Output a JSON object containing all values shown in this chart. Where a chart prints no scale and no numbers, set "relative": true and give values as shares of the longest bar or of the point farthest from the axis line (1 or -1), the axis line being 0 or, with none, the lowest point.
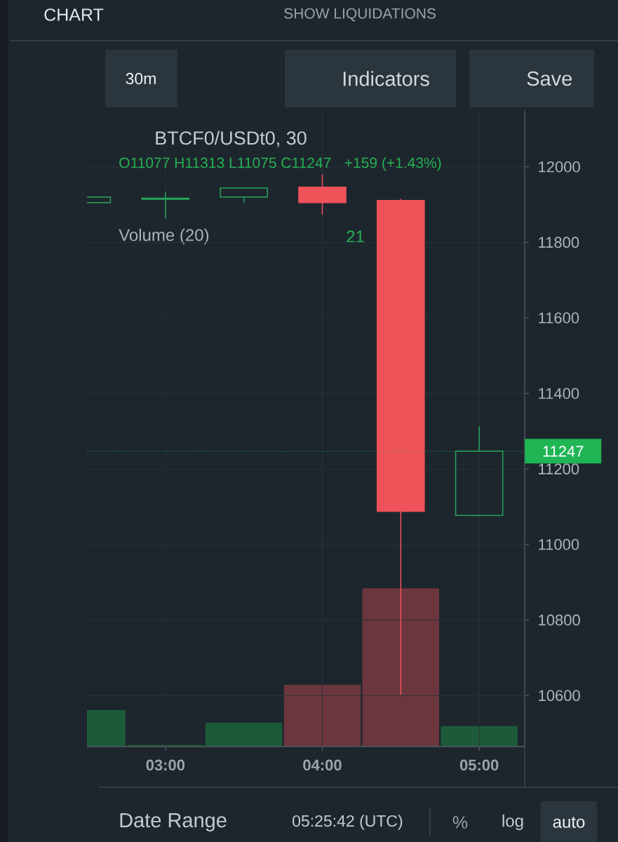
{
  "chart_data": [
    {
      "type": "candlestick",
      "title": "BTCF0/USDt0, 30",
      "subtitle": "O11077 H11313 L11075 C11247",
      "annotations": [
        "CHART",
        "SHOW LIQUIDATIONS",
        "30m",
        "Indicators",
        "Save",
        "+159 (+1.43%)",
        "Date Range",
        "05:25:42 (UTC)",
        "%",
        "log",
        "auto"
      ],
      "x": [
        2.5,
        3,
        3.5,
        4,
        4.5,
        5
      ],
      "ohlc": [
        [
          11905,
          11920,
          11905,
          11920
        ],
        [
          11914,
          11933,
          11864,
          11917
        ],
        [
          11920,
          11944,
          11905,
          11944
        ],
        [
          11946,
          11980,
          11874,
          11905
        ],
        [
          11911,
          11915,
          10602,
          11088
        ],
        [
          11077,
          11313,
          11075,
          11247
        ]
      ],
      "colors": [
        "#26a65b",
        "#26a65b",
        "#26a65b",
        "#f0525a",
        "#f0525a",
        "#26a65b"
      ],
      "xlim": [
        2.5,
        5.29
      ],
      "ylim": [
        10465,
        12150
      ],
      "xticks": [
        {
          "value": 3,
          "label": "03:00"
        },
        {
          "value": 4,
          "label": "04:00"
        },
        {
          "value": 5,
          "label": "05:00"
        }
      ],
      "yticks": [
        10600,
        10800,
        11000,
        11200,
        11400,
        11600,
        11800,
        12000
      ],
      "grid": true,
      "ref_lines": [
        {
          "axis": "y",
          "value": 11247,
          "label": "11247",
          "color": "#1fb554",
          "line_style": "dotted"
        }
      ]
    },
    {
      "type": "bar",
      "title": "Volume (20)",
      "annotations": [
        "21"
      ],
      "x": [
        2.5,
        3,
        3.5,
        4,
        4.5,
        5
      ],
      "values": [
        0.23,
        0.01,
        0.15,
        0.39,
        1,
        0.13
      ],
      "colors": [
        "#1c5b3a",
        "#1c5b3a",
        "#1c5b3a",
        "#6b363e",
        "#6b363e",
        "#1c5b3a"
      ],
      "relative": true,
      "xlim": [
        2.5,
        5.29
      ],
      "tick_labels": false
    }
  ]
}
